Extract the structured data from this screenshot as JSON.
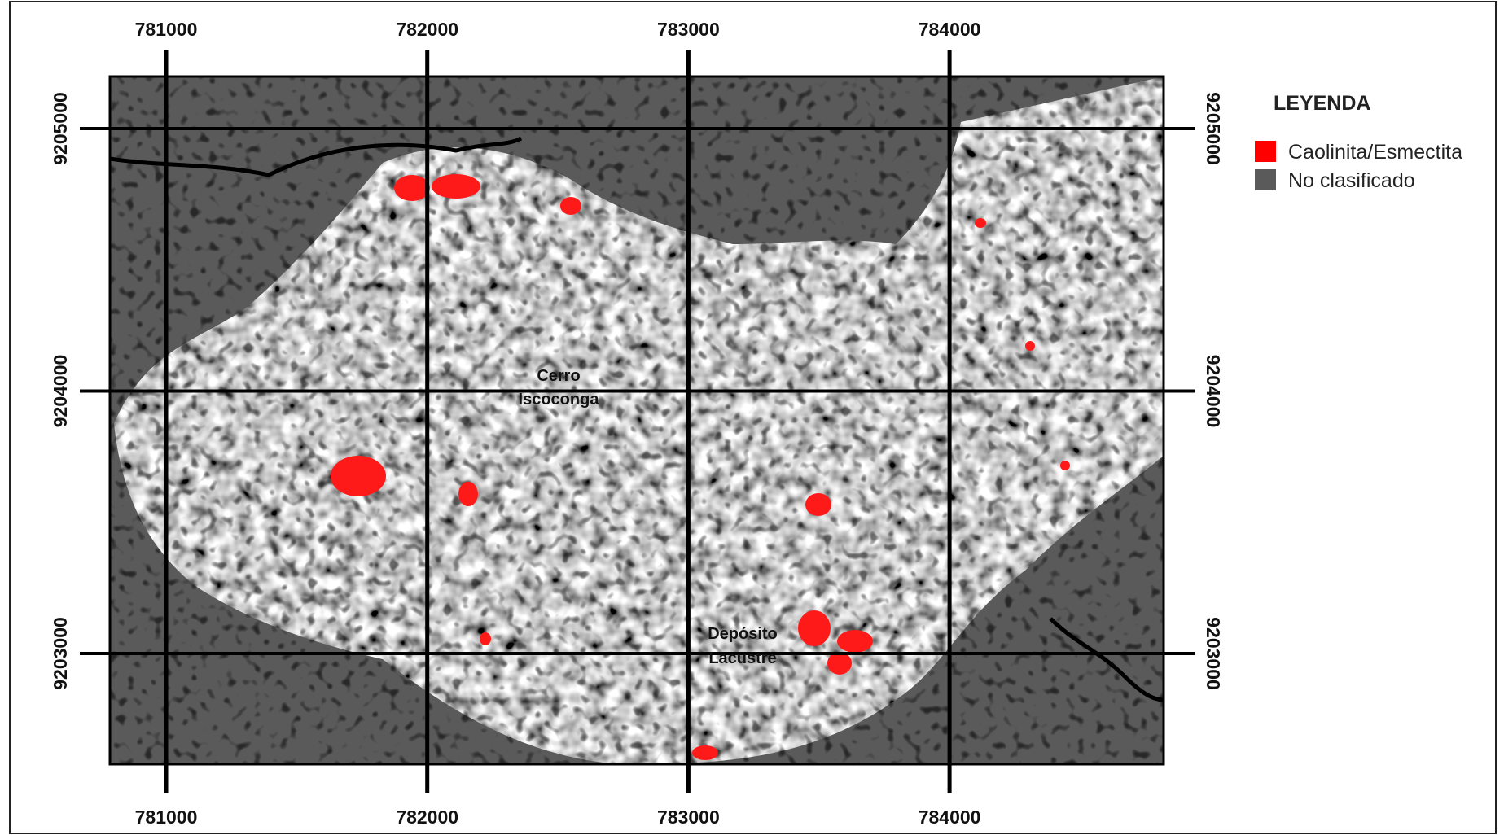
{
  "map": {
    "x_ticks": [
      781000,
      782000,
      783000,
      784000
    ],
    "y_ticks": [
      9205000,
      9204000,
      9203000
    ],
    "legend": {
      "title": "LEYENDA",
      "items": [
        {
          "label": "Caolinita/Esmectita",
          "color": "#ff0000"
        },
        {
          "label": "No clasificado",
          "color": "#5a5a5a"
        }
      ]
    },
    "places": [
      {
        "lines": [
          "Cerro",
          "Iscoconga"
        ]
      },
      {
        "lines": [
          "Depósito",
          "Lacustre"
        ]
      }
    ]
  }
}
